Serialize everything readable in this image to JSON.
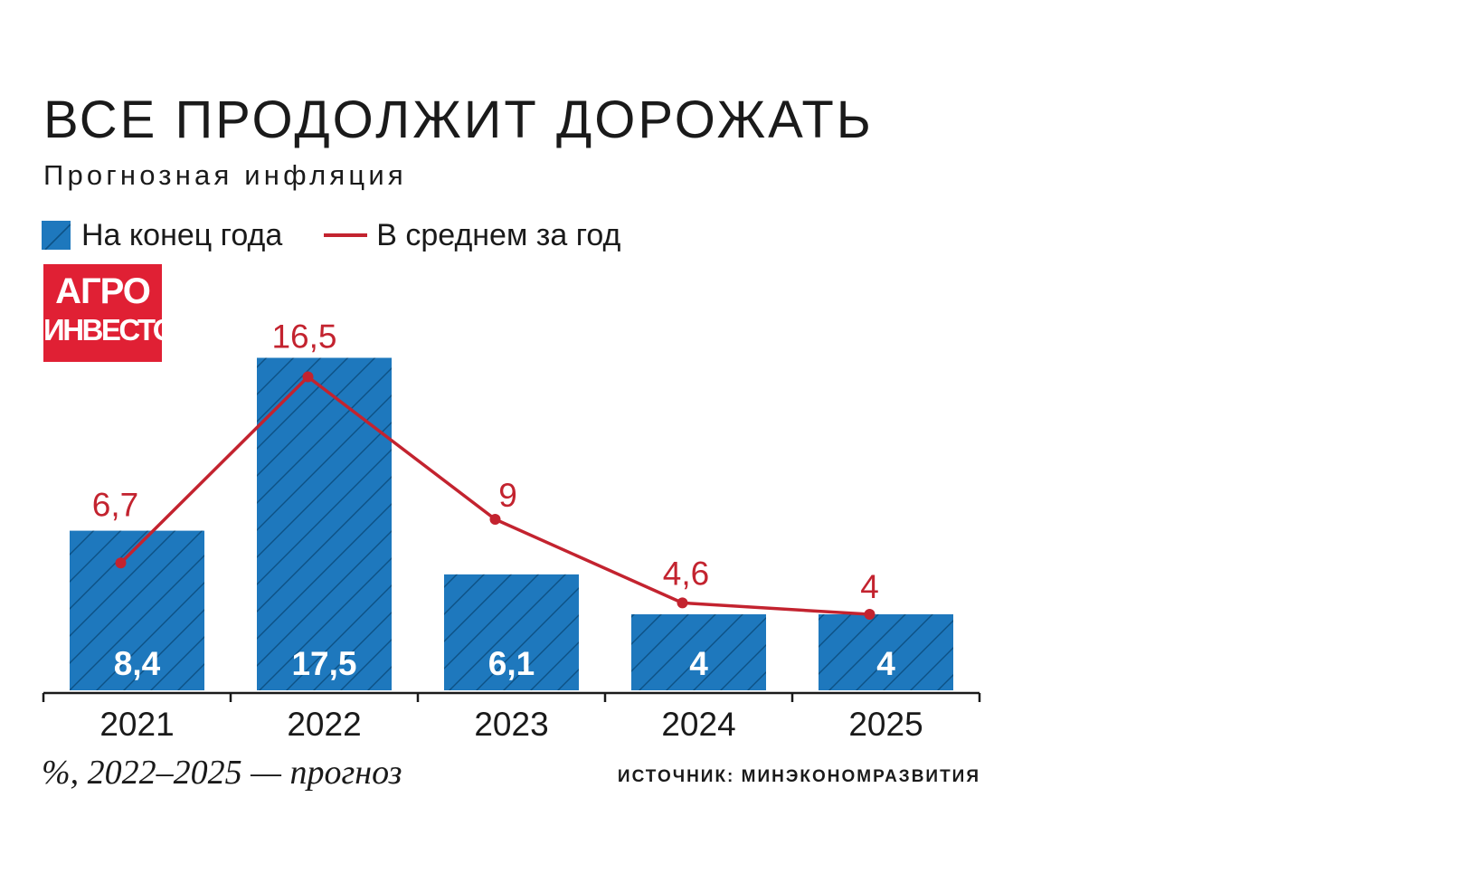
{
  "header": {
    "title": "ВСЕ ПРОДОЛЖИТ ДОРОЖАТЬ",
    "subtitle": "Прогнозная инфляция"
  },
  "legend": {
    "bar_label": "На конец года",
    "line_label": "В среднем за год"
  },
  "logo": {
    "line1": "АГРО",
    "line2": "ИНВЕСТОР"
  },
  "footer": {
    "note": "%, 2022–2025 — прогноз",
    "source": "ИСТОЧНИК: МИНЭКОНОМРАЗВИТИЯ"
  },
  "colors": {
    "bar": "#1e78bd",
    "bar_hatch": "#0d5185",
    "line": "#c3232f",
    "axis": "#1a1a1a",
    "logo_bg": "#e02034"
  },
  "chart_data": {
    "type": "bar",
    "categories": [
      "2021",
      "2022",
      "2023",
      "2024",
      "2025"
    ],
    "series": [
      {
        "name": "На конец года",
        "type": "bar",
        "values": [
          8.4,
          17.5,
          6.1,
          4,
          4
        ],
        "labels": [
          "8,4",
          "17,5",
          "6,1",
          "4",
          "4"
        ]
      },
      {
        "name": "В среднем за год",
        "type": "line",
        "values": [
          6.7,
          16.5,
          9,
          4.6,
          4
        ],
        "labels": [
          "6,7",
          "16,5",
          "9",
          "4,6",
          "4"
        ]
      }
    ],
    "ylim": [
      0,
      18
    ],
    "grid": false,
    "legend_position": "top-left"
  }
}
